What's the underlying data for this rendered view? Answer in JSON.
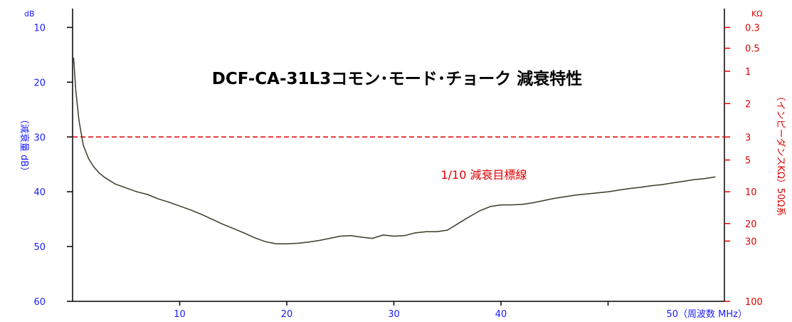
{
  "chart_data": {
    "type": "line",
    "title": "DCF-CA-31L3コモン･モード･チョーク 減衰特性",
    "xlabel": "（周波数 MHz）",
    "ylabel_left": "（減衰量 dB）",
    "ylabel_right": "（インピーダンスKΩ）50Ω系",
    "left_unit": "dB",
    "right_unit": "KΩ",
    "xlim": [
      0,
      60
    ],
    "ylim": [
      60,
      5
    ],
    "x_ticks": [
      "10",
      "20",
      "30",
      "40"
    ],
    "x_last_tick_label": "50（周波数 MHz）",
    "x_ticks_values": [
      10,
      20,
      30,
      40,
      50
    ],
    "y_ticks_left": [
      10,
      20,
      30,
      40,
      50,
      60
    ],
    "y_ticks_right": [
      {
        "label": "0.3",
        "db": 10.0
      },
      {
        "label": "0.5",
        "db": 13.8
      },
      {
        "label": "1",
        "db": 18.0
      },
      {
        "label": "2",
        "db": 23.9
      },
      {
        "label": "3",
        "db": 30.0
      },
      {
        "label": "5",
        "db": 34.2
      },
      {
        "label": "10",
        "db": 40.0
      },
      {
        "label": "20",
        "db": 45.8
      },
      {
        "label": "30",
        "db": 49.0
      },
      {
        "label": "100",
        "db": 60.0
      }
    ],
    "reference_line": {
      "y": 30,
      "label": "1/10 減衰目標線",
      "color": "#e00000",
      "style": "dashed"
    },
    "series": [
      {
        "color": "#3a3a2a",
        "x": [
          0.1,
          0.3,
          0.6,
          1.0,
          1.5,
          2.0,
          2.5,
          3.0,
          3.5,
          4.0,
          5.0,
          6.0,
          7.0,
          8.0,
          9.0,
          10.0,
          11.0,
          12.0,
          13.0,
          14.0,
          15.0,
          16.0,
          17.0,
          18.0,
          19.0,
          20.0,
          21.0,
          22.0,
          23.0,
          24.0,
          25.0,
          26.0,
          27.0,
          28.0,
          29.0,
          30.0,
          31.0,
          32.0,
          33.0,
          34.0,
          35.0,
          36.0,
          37.0,
          38.0,
          39.0,
          40.0,
          41.0,
          42.0,
          43.0,
          44.0,
          45.0,
          46.0,
          47.0,
          48.0,
          49.0,
          50.0,
          51.0,
          52.0,
          53.0,
          54.0,
          55.0,
          56.0,
          57.0,
          58.0,
          59.0,
          60.0
        ],
        "y": [
          15.6,
          21.5,
          27.0,
          31.5,
          34.0,
          35.5,
          36.6,
          37.4,
          38.0,
          38.6,
          39.3,
          40.0,
          40.5,
          41.3,
          41.9,
          42.6,
          43.3,
          44.1,
          45.0,
          45.9,
          46.7,
          47.5,
          48.4,
          49.1,
          49.5,
          49.5,
          49.4,
          49.2,
          48.9,
          48.5,
          48.1,
          48.0,
          48.3,
          48.5,
          47.9,
          48.1,
          48.0,
          47.5,
          47.3,
          47.3,
          47.0,
          45.8,
          44.6,
          43.5,
          42.7,
          42.4,
          42.4,
          42.3,
          42.0,
          41.6,
          41.2,
          40.9,
          40.6,
          40.4,
          40.2,
          40.0,
          39.7,
          39.4,
          39.2,
          38.9,
          38.7,
          38.4,
          38.1,
          37.8,
          37.6,
          37.3
        ]
      }
    ]
  }
}
